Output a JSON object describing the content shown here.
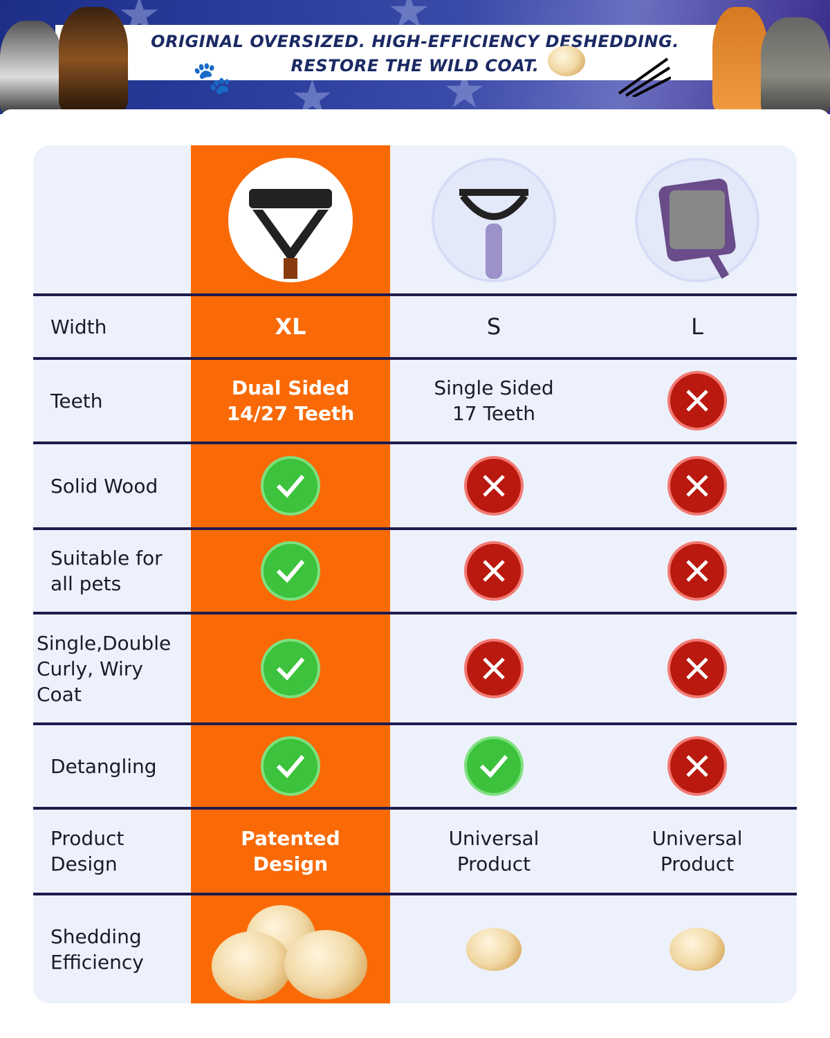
{
  "banner": {
    "line1": "ORIGINAL OVERSIZED. HIGH-EFFICIENCY DESHEDDING.",
    "line2": "RESTORE THE WILD COAT."
  },
  "columns": [
    {
      "name": "XL product (highlighted)",
      "highlight_color": "#f96a06"
    },
    {
      "name": "S product"
    },
    {
      "name": "L product"
    }
  ],
  "rows": {
    "width": {
      "label": "Width",
      "xl": "XL",
      "s": "S",
      "l": "L"
    },
    "teeth": {
      "label": "Teeth",
      "xl": "Dual Sided\n14/27 Teeth",
      "s": "Single Sided\n17 Teeth",
      "l": "no"
    },
    "solid_wood": {
      "label": "Solid Wood",
      "xl": "yes",
      "s": "no",
      "l": "no"
    },
    "suitable": {
      "label": "Suitable for\nall pets",
      "xl": "yes",
      "s": "no",
      "l": "no"
    },
    "coat": {
      "label": "Single,Double\nCurly, Wiry\nCoat",
      "xl": "yes",
      "s": "no",
      "l": "no"
    },
    "detangling": {
      "label": "Detangling",
      "xl": "yes",
      "s": "yes",
      "l": "no"
    },
    "design": {
      "label": "Product\nDesign",
      "xl": "Patented\nDesign",
      "s": "Universal\nProduct",
      "l": "Universal\nProduct"
    },
    "shedding": {
      "label": "Shedding\nEfficiency",
      "xl": "large fur pile",
      "s": "small fur ball",
      "l": "small fur ball"
    }
  },
  "colors": {
    "check": "#3cc23c",
    "cross": "#b9190f",
    "separator": "#1f1b4d",
    "panel": "#edf1fb"
  }
}
